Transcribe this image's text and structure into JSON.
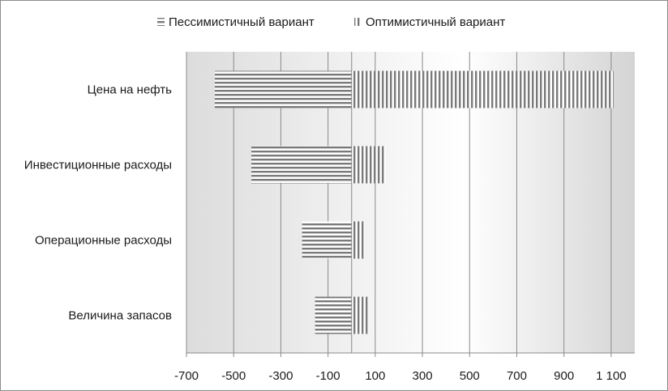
{
  "chart_data": {
    "type": "bar",
    "orientation": "horizontal",
    "categories": [
      "Цена на нефть",
      "Инвестиционные расходы",
      "Операционные расходы",
      "Величина запасов"
    ],
    "series": [
      {
        "name": "Пессимистичный вариант",
        "pattern": "horizontal-stripes",
        "values": [
          -580,
          -425,
          -210,
          -155
        ]
      },
      {
        "name": "Оптимистичный вариант",
        "pattern": "vertical-stripes",
        "values": [
          1110,
          145,
          55,
          70
        ]
      }
    ],
    "xlim": [
      -700,
      1200
    ],
    "x_ticks": [
      -700,
      -500,
      -300,
      -100,
      100,
      300,
      500,
      700,
      900,
      1100
    ],
    "x_tick_labels": [
      "-700",
      "-500",
      "-300",
      "-100",
      "100",
      "300",
      "500",
      "700",
      "900",
      "1 100"
    ],
    "legend_position": "top",
    "grid": "vertical",
    "colors": {
      "bar_stripe": "#7a7a7a",
      "gridline": "#8a8a8a",
      "plot_band_dark": "#d9d9d9",
      "plot_band_light": "#ffffff"
    }
  }
}
